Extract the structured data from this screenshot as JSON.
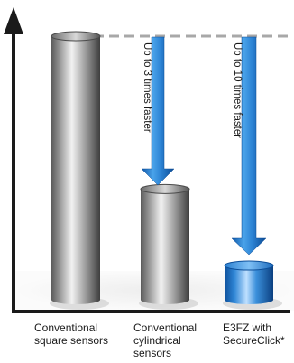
{
  "chart_data": {
    "type": "bar",
    "title": "",
    "xlabel": "",
    "ylabel": "",
    "ylim": [
      0,
      100
    ],
    "grid": false,
    "categories": [
      "Conventional\nsquare sensors",
      "Conventional\ncylindrical\nsensors",
      "E3FZ with\nSecureClick*"
    ],
    "values": [
      100,
      42,
      13
    ],
    "annotations": [
      {
        "text": "Up to 3 times faster",
        "from_category": 0,
        "to_category": 1
      },
      {
        "text": "Up to 10 times faster",
        "from_category": 0,
        "to_category": 2
      }
    ],
    "colors": {
      "gray_bar": "#8a8a8a",
      "blue_bar": "#1f78c8",
      "arrow": "#1a6fc4",
      "axis": "#1a1a1a",
      "reference_line": "#a8a8a8"
    }
  }
}
